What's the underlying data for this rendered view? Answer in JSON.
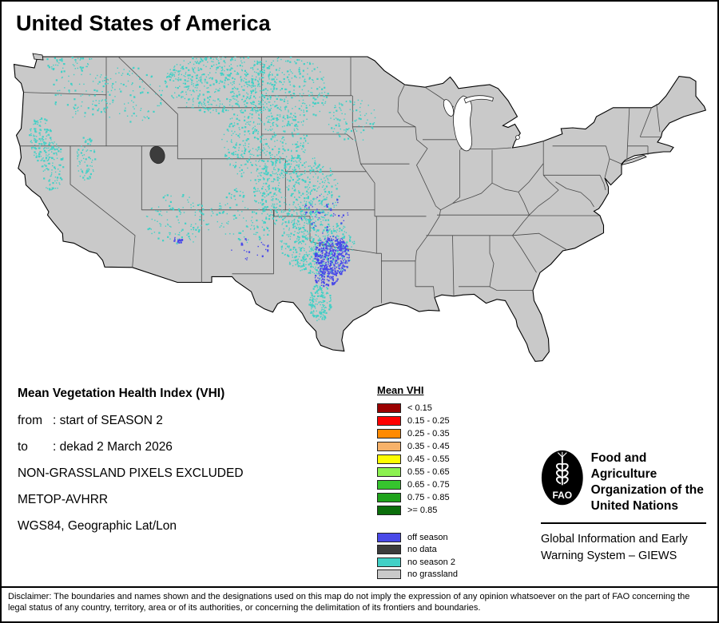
{
  "page": {
    "title": "United States of America"
  },
  "map": {
    "region": "contiguous United States",
    "land_outline_color": "#000000",
    "state_border_color": "#4a4a4a",
    "water_color": "#ffffff"
  },
  "info": {
    "heading": "Mean Vegetation Health Index (VHI)",
    "rows": [
      {
        "label": "from",
        "value": ": start of SEASON 2"
      },
      {
        "label": "to",
        "value": ": dekad 2 March 2026"
      }
    ],
    "lines": [
      "NON-GRASSLAND PIXELS EXCLUDED",
      "METOP-AVHRR",
      "WGS84, Geographic Lat/Lon"
    ]
  },
  "legend": {
    "title": "Mean VHI",
    "classes": [
      {
        "label": "< 0.15",
        "color": "#9b0000"
      },
      {
        "label": "0.15 - 0.25",
        "color": "#fe0000"
      },
      {
        "label": "0.25 - 0.35",
        "color": "#ff8a00"
      },
      {
        "label": "0.35 - 0.45",
        "color": "#f7b26a"
      },
      {
        "label": "0.45 - 0.55",
        "color": "#fdfd00"
      },
      {
        "label": "0.55 - 0.65",
        "color": "#8cf150"
      },
      {
        "label": "0.65 - 0.75",
        "color": "#36c52e"
      },
      {
        "label": "0.75 - 0.85",
        "color": "#1fa31b"
      },
      {
        "label": ">= 0.85",
        "color": "#0b6e0b"
      }
    ],
    "extras": [
      {
        "label": "off season",
        "color": "#4949e8"
      },
      {
        "label": "no data",
        "color": "#3c3c3c"
      },
      {
        "label": "no season 2",
        "color": "#41d0c6"
      },
      {
        "label": "no grassland",
        "color": "#c9c9c9"
      }
    ]
  },
  "branding": {
    "logo": "fao-wheat-emblem",
    "org_lines": [
      "Food and Agriculture",
      "Organization of the",
      "United Nations"
    ],
    "giews_lines": [
      "Global Information and Early",
      "Warning System – GIEWS"
    ]
  },
  "disclaimer": "Disclaimer: The boundaries and names shown and the designations used on this map do not imply the expression of any opinion whatsoever on the part of FAO concerning the legal status of any country, territory, area or of its authorities, or concerning the delimitation of its frontiers and boundaries."
}
